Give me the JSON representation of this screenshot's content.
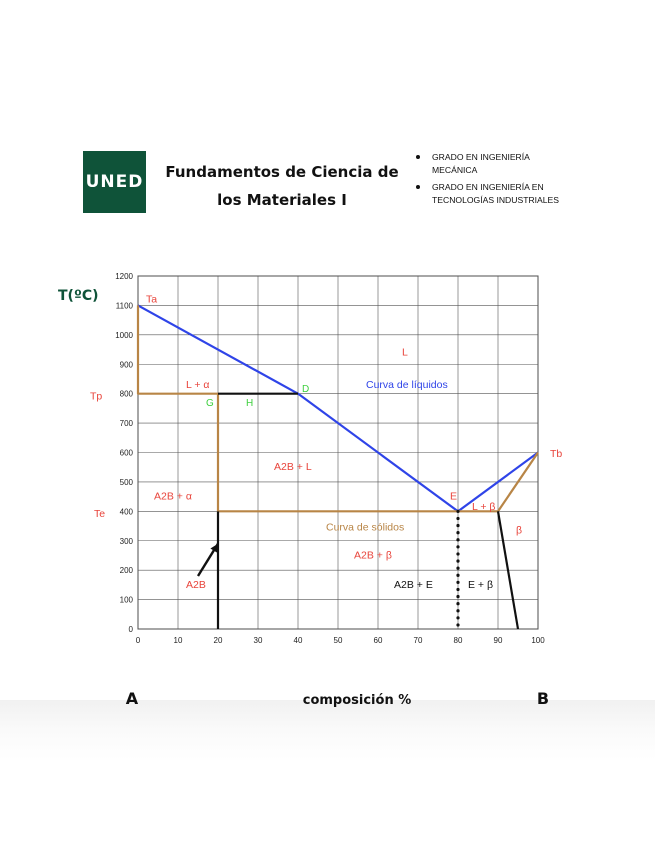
{
  "header": {
    "logo_text": "UNED",
    "course_title": "Fundamentos de Ciencia de los Materiales I",
    "degrees": [
      "GRADO EN INGENIERÍA MECÁNICA",
      "GRADO EN INGENIERÍA EN TECNOLOGÍAS INDUSTRIALES"
    ],
    "brand_color": "#0f5339"
  },
  "chart_data": {
    "type": "line",
    "xlabel": "composición %",
    "ylabel": "T(ºC)",
    "xlim": [
      0,
      100
    ],
    "ylim": [
      0,
      1200
    ],
    "x_ticks": [
      0,
      10,
      20,
      30,
      40,
      50,
      60,
      70,
      80,
      90,
      100
    ],
    "y_ticks": [
      0,
      100,
      200,
      300,
      400,
      500,
      600,
      700,
      800,
      900,
      1000,
      1100,
      1200
    ],
    "grid": true,
    "left_end_label": "A",
    "right_end_label": "B",
    "colors": {
      "liquidus": "#2f44e8",
      "solidus": "#b88546",
      "red": "#e8433a",
      "green": "#3ecf3e",
      "black": "#111111"
    },
    "lines": [
      {
        "name": "Curva de líquidos",
        "color": "#2f44e8",
        "points": [
          [
            0,
            1100
          ],
          [
            40,
            800
          ],
          [
            80,
            400
          ],
          [
            100,
            600
          ]
        ]
      },
      {
        "color": "#b88546",
        "points": [
          [
            0,
            1100
          ],
          [
            0,
            800
          ],
          [
            20,
            800
          ],
          [
            20,
            400
          ],
          [
            80,
            400
          ]
        ]
      },
      {
        "color": "#b88546",
        "points": [
          [
            80,
            400
          ],
          [
            90,
            400
          ],
          [
            100,
            600
          ]
        ]
      },
      {
        "color": "#111111",
        "points": [
          [
            20,
            800
          ],
          [
            40,
            800
          ]
        ]
      },
      {
        "color": "#111111",
        "points": [
          [
            20,
            400
          ],
          [
            20,
            0
          ]
        ]
      },
      {
        "color": "#111111",
        "points": [
          [
            90,
            400
          ],
          [
            95,
            0
          ]
        ]
      },
      {
        "color": "#111111",
        "style": "dotted",
        "points": [
          [
            80,
            400
          ],
          [
            80,
            0
          ]
        ]
      }
    ],
    "annotations": [
      {
        "text": "Ta",
        "x": 2,
        "y": 1110,
        "color": "#e8433a"
      },
      {
        "text": "Tb",
        "x": 103,
        "y": 585,
        "color": "#e8433a"
      },
      {
        "text": "Tp",
        "x": -12,
        "y": 780,
        "color": "#e8433a"
      },
      {
        "text": "Te",
        "x": -11,
        "y": 380,
        "color": "#e8433a"
      },
      {
        "text": "L",
        "x": 66,
        "y": 930,
        "color": "#e8433a"
      },
      {
        "text": "L + α",
        "x": 12,
        "y": 820,
        "color": "#e8433a"
      },
      {
        "text": "Curva de líquidos",
        "x": 57,
        "y": 820,
        "color": "#2f44e8"
      },
      {
        "text": "D",
        "x": 41,
        "y": 805,
        "color": "#3ecf3e"
      },
      {
        "text": "G",
        "x": 17,
        "y": 758,
        "color": "#3ecf3e"
      },
      {
        "text": "H",
        "x": 27,
        "y": 758,
        "color": "#3ecf3e"
      },
      {
        "text": "A2B + L",
        "x": 34,
        "y": 540,
        "color": "#e8433a"
      },
      {
        "text": "A2B + α",
        "x": 4,
        "y": 440,
        "color": "#e8433a"
      },
      {
        "text": "E",
        "x": 78,
        "y": 440,
        "color": "#e8433a"
      },
      {
        "text": "L + β",
        "x": 83.5,
        "y": 405,
        "color": "#e8433a"
      },
      {
        "text": "Curva de sólidos",
        "x": 47,
        "y": 335,
        "color": "#b88546"
      },
      {
        "text": "β",
        "x": 94.5,
        "y": 325,
        "color": "#e8433a"
      },
      {
        "text": "A2B + β",
        "x": 54,
        "y": 240,
        "color": "#e8433a"
      },
      {
        "text": "A2B + E",
        "x": 64,
        "y": 140,
        "color": "#111111"
      },
      {
        "text": "E + β",
        "x": 82.5,
        "y": 140,
        "color": "#111111"
      },
      {
        "text": "A2B",
        "x": 12,
        "y": 140,
        "color": "#e8433a"
      }
    ],
    "arrow": {
      "from": [
        15,
        180
      ],
      "to": [
        20,
        290
      ],
      "color": "#111111"
    }
  }
}
